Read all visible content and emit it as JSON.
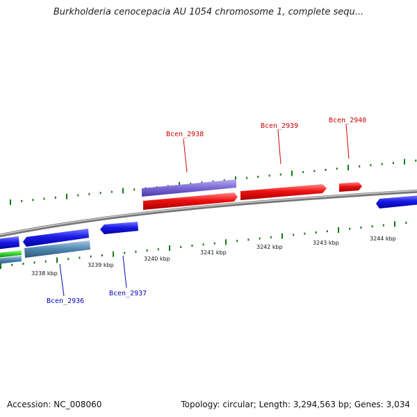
{
  "header": {
    "title": "Burkholderia cenocepacia AU 1054 chromosome 1, complete sequ..."
  },
  "footer": {
    "accession": "Accession: NC_008060",
    "topology": "Topology: circular; Length: 3,294,563 bp; Genes: 3,034"
  },
  "map": {
    "kbp_labels": [
      "3238 kbp",
      "3239 kbp",
      "3240 kbp",
      "3241 kbp",
      "3242 kbp",
      "3243 kbp",
      "3244 kbp"
    ],
    "forward_gene_labels": [
      "Bcen_2938",
      "Bcen_2939",
      "Bcen_2940"
    ],
    "reverse_gene_labels": [
      "Bcen_2936",
      "Bcen_2937"
    ],
    "colors": {
      "forward_gene": "#ee1111",
      "forward_cds": "#7b68d6",
      "reverse_gene": "#1a1ae6",
      "reverse_cds": "#4f86b0",
      "green_feature": "#33cc33",
      "backbone": "#888888",
      "tick": "#117a11",
      "forward_label": "#cc0000",
      "reverse_label": "#0000bb"
    }
  }
}
